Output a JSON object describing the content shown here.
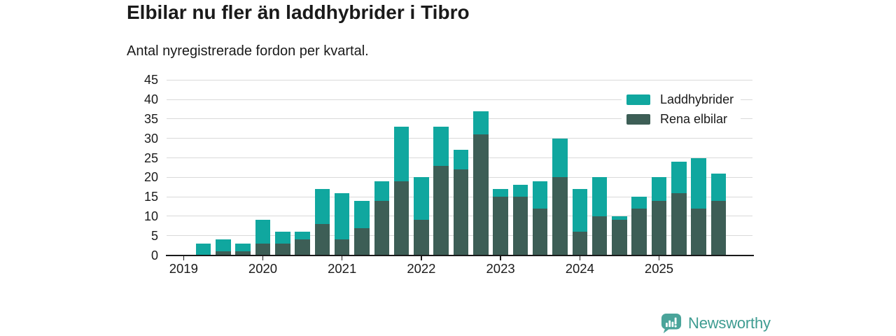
{
  "header": {
    "title": "Elbilar nu fler än laddhybrider i Tibro",
    "subtitle": "Antal nyregistrerade fordon per kvartal."
  },
  "chart_data": {
    "type": "bar",
    "stacked": true,
    "title": "Elbilar nu fler än laddhybrider i Tibro",
    "subtitle": "Antal nyregistrerade fordon per kvartal.",
    "categories": [
      "2019 K2",
      "2019 K3",
      "2019 K4",
      "2020 K1",
      "2020 K2",
      "2020 K3",
      "2020 K4",
      "2021 K1",
      "2021 K2",
      "2021 K3",
      "2021 K4",
      "2022 K1",
      "2022 K2",
      "2022 K3",
      "2022 K4",
      "2023 K1",
      "2023 K2",
      "2023 K3",
      "2023 K4",
      "2024 K1",
      "2024 K2",
      "2024 K3",
      "2024 K4",
      "2025 K1",
      "2025 K2",
      "2025 K3",
      "2025 K4"
    ],
    "series": [
      {
        "name": "Rena elbilar",
        "color": "#3d5e56",
        "values": [
          0,
          1,
          1,
          3,
          3,
          4,
          8,
          4,
          7,
          14,
          19,
          9,
          23,
          22,
          31,
          15,
          15,
          12,
          20,
          6,
          10,
          9,
          12,
          14,
          16,
          12,
          14
        ]
      },
      {
        "name": "Laddhybrider",
        "color": "#10a79f",
        "values": [
          3,
          3,
          2,
          6,
          3,
          2,
          9,
          12,
          7,
          5,
          14,
          11,
          10,
          5,
          6,
          2,
          3,
          7,
          10,
          11,
          10,
          1,
          3,
          6,
          8,
          13,
          7
        ]
      }
    ],
    "legend_order": [
      1,
      0
    ],
    "legend_position": "top-right",
    "x_tick_labels": [
      "2019",
      "2020",
      "2021",
      "2022",
      "2023",
      "2024",
      "2025"
    ],
    "quarters_per_year": 4,
    "y_ticks": [
      0,
      5,
      10,
      15,
      20,
      25,
      30,
      35,
      40,
      45
    ],
    "ylim": [
      0,
      45
    ],
    "grid": "horizontal"
  },
  "colors": {
    "laddhybrider": "#10a79f",
    "rena_elbilar": "#3d5e56",
    "gridline": "#d9d9d9",
    "axis": "#1a1a1a",
    "text": "#1a1a1a",
    "brand_text": "#3e9c91",
    "brand_badge": "#4aa49a"
  },
  "footer": {
    "brand": "Newsworthy"
  }
}
